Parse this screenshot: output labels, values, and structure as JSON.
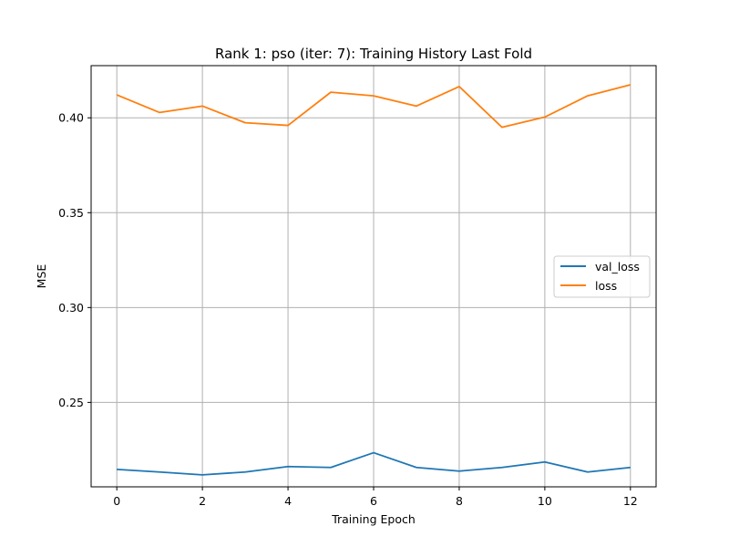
{
  "chart_data": {
    "type": "line",
    "title": "Rank 1: pso (iter: 7): Training History Last Fold",
    "xlabel": "Training Epoch",
    "ylabel": "MSE",
    "xlim": [
      -0.6,
      12.6
    ],
    "ylim": [
      0.2055,
      0.4275
    ],
    "x": [
      0,
      1,
      2,
      3,
      4,
      5,
      6,
      7,
      8,
      9,
      10,
      11,
      12
    ],
    "xticks": [
      0,
      2,
      4,
      6,
      8,
      10,
      12
    ],
    "yticks": [
      0.25,
      0.3,
      0.35,
      0.4
    ],
    "ytick_labels": [
      "0.25",
      "0.30",
      "0.35",
      "0.40"
    ],
    "grid": true,
    "legend_position": "center-right",
    "series": [
      {
        "name": "val_loss",
        "color": "#1f77b4",
        "values": [
          0.2147,
          0.2133,
          0.2118,
          0.2133,
          0.2162,
          0.2157,
          0.2235,
          0.2157,
          0.2138,
          0.2157,
          0.2186,
          0.2133,
          0.2157
        ]
      },
      {
        "name": "loss",
        "color": "#ff7f0e",
        "values": [
          0.4121,
          0.4028,
          0.4062,
          0.3974,
          0.396,
          0.4135,
          0.4116,
          0.4062,
          0.4165,
          0.395,
          0.4004,
          0.4116,
          0.4174
        ]
      }
    ]
  }
}
